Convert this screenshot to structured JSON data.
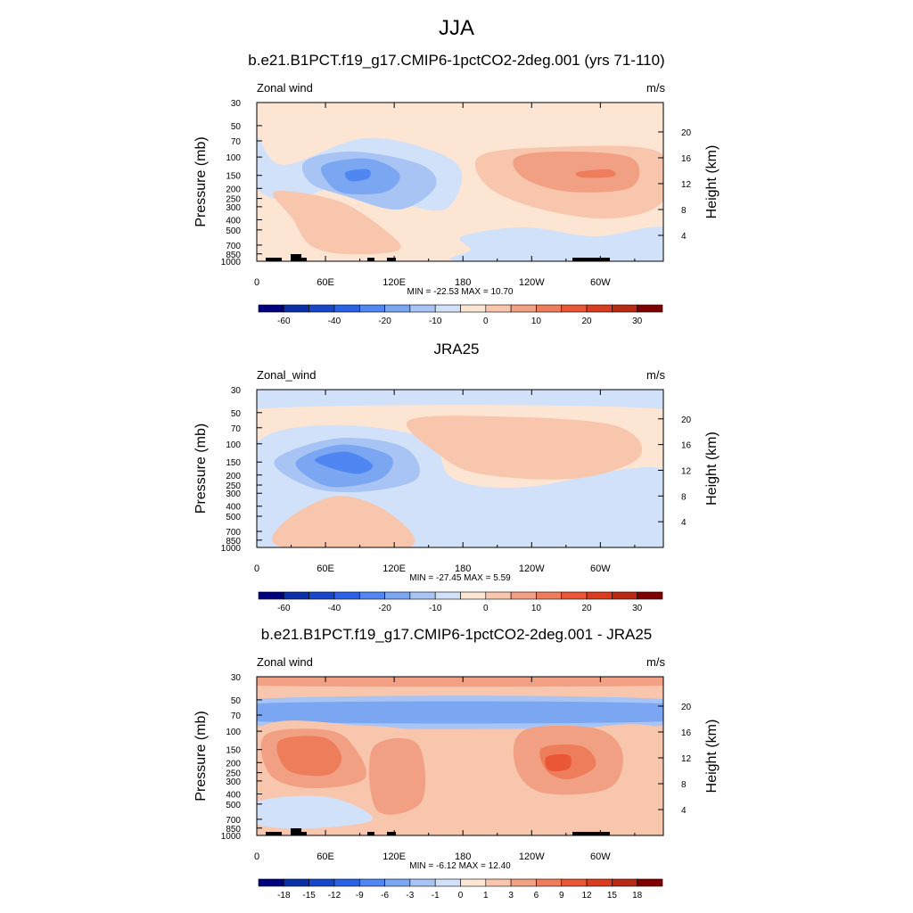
{
  "figure": {
    "title": "JJA"
  },
  "axes": {
    "pressure_label": "Pressure (mb)",
    "height_label": "Height (km)",
    "pressure_ticks": [
      "30",
      "50",
      "70",
      "100",
      "150",
      "200",
      "250",
      "300",
      "400",
      "500",
      "700",
      "850",
      "1000"
    ],
    "pressure_values": [
      30,
      50,
      70,
      100,
      150,
      200,
      250,
      300,
      400,
      500,
      700,
      850,
      1000
    ],
    "height_ticks": [
      "20",
      "16",
      "12",
      "8",
      "4"
    ],
    "height_values_km": [
      20,
      16,
      12,
      8,
      4
    ],
    "lon_ticks": [
      "0",
      "60E",
      "120E",
      "180",
      "120W",
      "60W"
    ],
    "lon_values": [
      0,
      60,
      120,
      180,
      240,
      300
    ],
    "xlim": [
      0,
      355
    ],
    "ylim_mb": [
      1000,
      30
    ]
  },
  "panels": [
    {
      "title": "b.e21.B1PCT.f19_g17.CMIP6-1pctCO2-2deg.001 (yrs 71-110)",
      "variable": "Zonal wind",
      "units": "m/s",
      "stats": "MIN = -22.53  MAX =  10.70",
      "colorbar": {
        "labels": [
          "-60",
          "-40",
          "-20",
          "-10",
          "0",
          "10",
          "20",
          "30"
        ],
        "levels": [
          -70,
          -60,
          -50,
          -40,
          -30,
          -20,
          -15,
          -10,
          -5,
          0,
          5,
          10,
          15,
          20,
          25,
          30,
          35
        ]
      }
    },
    {
      "title": "JRA25",
      "variable": "Zonal_wind",
      "units": "m/s",
      "stats": "MIN = -27.45  MAX =   5.59",
      "colorbar": {
        "labels": [
          "-60",
          "-40",
          "-20",
          "-10",
          "0",
          "10",
          "20",
          "30"
        ],
        "levels": [
          -70,
          -60,
          -50,
          -40,
          -30,
          -20,
          -15,
          -10,
          -5,
          0,
          5,
          10,
          15,
          20,
          25,
          30,
          35
        ]
      }
    },
    {
      "title": "b.e21.B1PCT.f19_g17.CMIP6-1pctCO2-2deg.001 - JRA25",
      "variable": "Zonal wind",
      "units": "m/s",
      "stats": "MIN =  -6.12  MAX =  12.40",
      "colorbar": {
        "labels": [
          "-18",
          "-15",
          "-12",
          "-9",
          "-6",
          "-3",
          "-1",
          "0",
          "1",
          "3",
          "6",
          "9",
          "12",
          "15",
          "18"
        ],
        "levels": [
          -18,
          -15,
          -12,
          -9,
          -6,
          -3,
          -1,
          0,
          1,
          3,
          6,
          9,
          12,
          15,
          18
        ]
      }
    }
  ],
  "colors": {
    "palette": [
      "#00007f",
      "#0a2fa6",
      "#1746c8",
      "#2a62e6",
      "#4f86f2",
      "#7aa6f2",
      "#a8c4f5",
      "#d0e1f9",
      "#fde5d4",
      "#f8c6ad",
      "#f2a084",
      "#ee7d5c",
      "#ea5736",
      "#d93c1e",
      "#b82a14",
      "#7f0000"
    ]
  },
  "chart_data": [
    {
      "type": "contour",
      "title": "b.e21.B1PCT.f19_g17.CMIP6-1pctCO2-2deg.001 (yrs 71-110)",
      "xlabel": "",
      "ylabel": "Pressure (mb)",
      "y2label": "Height (km)",
      "x_range": [
        0,
        355
      ],
      "y_range_mb": [
        1000,
        30
      ],
      "min": -22.53,
      "max": 10.7,
      "features": [
        {
          "name": "easterly jet core",
          "lon": 80,
          "p": 150,
          "value": -20
        },
        {
          "name": "westerly max",
          "lon": 290,
          "p": 150,
          "value": 10
        },
        {
          "name": "lower-trop westerlies",
          "lon": 50,
          "p": 500,
          "value": 5
        }
      ]
    },
    {
      "type": "contour",
      "title": "JRA25",
      "xlabel": "",
      "ylabel": "Pressure (mb)",
      "y2label": "Height (km)",
      "x_range": [
        0,
        355
      ],
      "y_range_mb": [
        1000,
        30
      ],
      "min": -27.45,
      "max": 5.59,
      "features": [
        {
          "name": "easterly jet core",
          "lon": 80,
          "p": 150,
          "value": -25
        },
        {
          "name": "westerly region",
          "lon": 230,
          "p": 100,
          "value": 5
        }
      ]
    },
    {
      "type": "contour",
      "title": "b.e21.B1PCT.f19_g17.CMIP6-1pctCO2-2deg.001 - JRA25",
      "xlabel": "",
      "ylabel": "Pressure (mb)",
      "y2label": "Height (km)",
      "x_range": [
        0,
        355
      ],
      "y_range_mb": [
        1000,
        30
      ],
      "min": -6.12,
      "max": 12.4,
      "features": [
        {
          "name": "positive diff",
          "lon": 40,
          "p": 150,
          "value": 9
        },
        {
          "name": "positive diff",
          "lon": 260,
          "p": 200,
          "value": 9
        },
        {
          "name": "negative band",
          "lon": 180,
          "p": 70,
          "value": -6
        }
      ]
    }
  ]
}
